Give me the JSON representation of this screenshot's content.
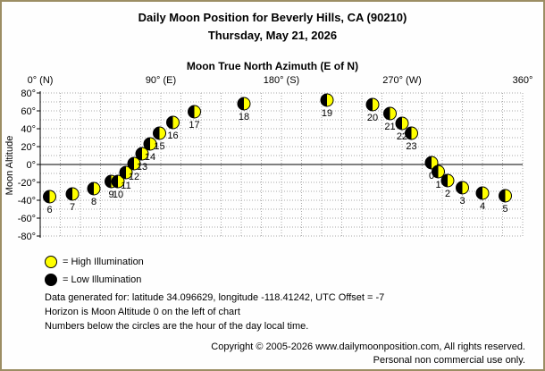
{
  "header": {
    "title": "Daily Moon Position for Beverly Hills, CA (90210)",
    "date": "Thursday, May 21, 2026"
  },
  "legend": {
    "high": "= High Illumination",
    "low": "= Low Illumination",
    "high_color": "#ffff00",
    "low_color": "#000000"
  },
  "notes": [
    "Data generated for: latitude 34.096629, longitude -118.41242, UTC Offset = -7",
    "Horizon is Moon Altitude 0 on the left of chart",
    "Numbers below the circles are the hour of the day local time."
  ],
  "copyright": [
    "Copyright © 2005-2026 www.dailymoonposition.com, All rights reserved.",
    "Personal non commercial use only."
  ],
  "chart_data": {
    "type": "scatter",
    "title": "Moon True North Azimuth (E of N)",
    "xlabel": "Moon True North Azimuth (E of N)",
    "ylabel": "Moon Altitude",
    "xlim": [
      0,
      360
    ],
    "ylim": [
      -80,
      80
    ],
    "x_ticks": [
      {
        "value": 0,
        "label": "0° (N)"
      },
      {
        "value": 90,
        "label": "90° (E)"
      },
      {
        "value": 180,
        "label": "180° (S)"
      },
      {
        "value": 270,
        "label": "270° (W)"
      },
      {
        "value": 360,
        "label": "360°"
      }
    ],
    "y_ticks": [
      {
        "value": 80,
        "label": "80°"
      },
      {
        "value": 60,
        "label": "60°"
      },
      {
        "value": 40,
        "label": "40°"
      },
      {
        "value": 20,
        "label": "20°"
      },
      {
        "value": 0,
        "label": "0°"
      },
      {
        "value": -20,
        "label": "-20°"
      },
      {
        "value": -40,
        "label": "-40°"
      },
      {
        "value": -60,
        "label": "-60°"
      },
      {
        "value": -80,
        "label": "-80°"
      }
    ],
    "grid": true,
    "points": [
      {
        "hour": "0",
        "azimuth": 292,
        "altitude": 2
      },
      {
        "hour": "1",
        "azimuth": 297,
        "altitude": -8
      },
      {
        "hour": "2",
        "azimuth": 304,
        "altitude": -18
      },
      {
        "hour": "3",
        "azimuth": 315,
        "altitude": -26
      },
      {
        "hour": "4",
        "azimuth": 330,
        "altitude": -32
      },
      {
        "hour": "5",
        "azimuth": 347,
        "altitude": -35
      },
      {
        "hour": "6",
        "azimuth": 7,
        "altitude": -36
      },
      {
        "hour": "7",
        "azimuth": 24,
        "altitude": -33
      },
      {
        "hour": "8",
        "azimuth": 40,
        "altitude": -27
      },
      {
        "hour": "9",
        "azimuth": 53,
        "altitude": -19
      },
      {
        "hour": "10",
        "azimuth": 58,
        "altitude": -19
      },
      {
        "hour": "11",
        "azimuth": 64,
        "altitude": -9
      },
      {
        "hour": "12",
        "azimuth": 70,
        "altitude": 1
      },
      {
        "hour": "13",
        "azimuth": 76,
        "altitude": 12
      },
      {
        "hour": "14",
        "azimuth": 82,
        "altitude": 23
      },
      {
        "hour": "15",
        "azimuth": 89,
        "altitude": 35
      },
      {
        "hour": "16",
        "azimuth": 99,
        "altitude": 47
      },
      {
        "hour": "17",
        "azimuth": 115,
        "altitude": 59
      },
      {
        "hour": "18",
        "azimuth": 152,
        "altitude": 68
      },
      {
        "hour": "19",
        "azimuth": 214,
        "altitude": 72
      },
      {
        "hour": "20",
        "azimuth": 248,
        "altitude": 67
      },
      {
        "hour": "21",
        "azimuth": 261,
        "altitude": 57
      },
      {
        "hour": "22",
        "azimuth": 270,
        "altitude": 46
      },
      {
        "hour": "23",
        "azimuth": 277,
        "altitude": 35
      }
    ]
  }
}
